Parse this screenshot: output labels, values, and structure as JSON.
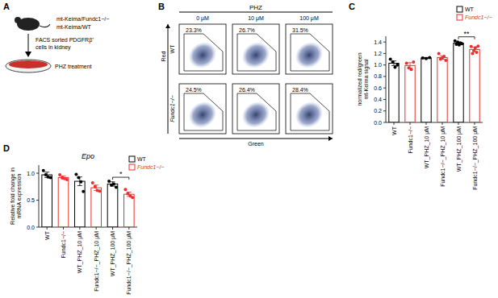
{
  "panel_labels": [
    "A",
    "B",
    "C",
    "D"
  ],
  "schematic": {
    "mouse_lines": [
      "mt-Keima/Fundc1−/−",
      "mt-Keima/WT"
    ],
    "sort_lines": [
      "FACS sorted PDGFRβ⁺",
      "cells in kidney"
    ],
    "treatment": "PHZ treatment"
  },
  "flow": {
    "title": "PHZ",
    "doses": [
      "0 μM",
      "10 μM",
      "100 μM"
    ],
    "rows": [
      "WT",
      "Fundc1−/−"
    ],
    "gate_labels": [
      [
        "23.3%",
        "26.7%",
        "31.5%"
      ],
      [
        "24.5%",
        "26.4%",
        "28.4%"
      ]
    ],
    "x_label": "Green",
    "y_label": "Red"
  },
  "chart_data": [
    {
      "type": "bar",
      "y_label": [
        "normalized red/green",
        "mt-Keima signal"
      ],
      "categories": [
        "WT",
        "Fundc1−/−",
        "WT_PHZ_10 μM",
        "Fundc1−/−_PHZ_10 μM",
        "WT_PHZ_100 μM",
        "Fundc1−/−_PHZ_100 μM"
      ],
      "series": [
        {
          "name": "WT",
          "color": "#000000",
          "values": [
            1.03,
            null,
            1.12,
            null,
            1.38,
            null
          ],
          "errors": [
            0.04,
            null,
            0.01,
            null,
            0.02,
            null
          ],
          "points": [
            [
              1.1,
              1.05,
              0.96,
              1.0
            ],
            null,
            [
              1.12,
              1.11,
              1.13
            ],
            null,
            [
              1.42,
              1.36,
              1.4,
              1.35,
              1.38,
              1.37
            ],
            null
          ]
        },
        {
          "name": "Fundc1−/−",
          "color": "#e8312f",
          "values": [
            null,
            0.99,
            null,
            1.13,
            null,
            1.27
          ],
          "errors": [
            null,
            0.05,
            null,
            0.03,
            null,
            0.04
          ],
          "points": [
            null,
            [
              1.03,
              0.95,
              0.92,
              1.05
            ],
            null,
            [
              1.2,
              1.1,
              1.12,
              1.15,
              1.08
            ],
            null,
            [
              1.32,
              1.2,
              1.25,
              1.3,
              1.22,
              1.33
            ]
          ]
        }
      ],
      "ylim": [
        0,
        1.5
      ],
      "yticks": [
        {
          "value": 0,
          "label": "0.0"
        },
        0.2,
        0.4,
        0.6,
        0.8,
        {
          "value": 1,
          "label": "1.0"
        },
        1.2,
        1.4
      ],
      "annotations": [
        {
          "text": "**",
          "categories": [
            "WT_PHZ_100 μM",
            "Fundc1−/−_PHZ_100 μM"
          ]
        }
      ],
      "legend": "top-right"
    },
    {
      "type": "bar",
      "title": "Epo",
      "y_label": [
        "Relative fold change in",
        "mRNA expression"
      ],
      "categories": [
        "WT",
        "Fundc1−/−",
        "WT_PHZ_10 μM",
        "Fundc1−/−_PHZ_10 μM",
        "WT_PHZ_100 μM",
        "Fundc1−/−_PHZ_100 μM"
      ],
      "series": [
        {
          "name": "WT",
          "color": "#000000",
          "values": [
            0.97,
            null,
            0.85,
            null,
            0.8,
            null
          ],
          "errors": [
            0.05,
            null,
            0.08,
            null,
            0.04,
            null
          ],
          "points": [
            [
              1.05,
              0.97,
              0.93,
              0.92
            ],
            null,
            [
              0.98,
              0.92,
              0.84,
              0.66
            ],
            null,
            [
              0.85,
              0.78,
              0.8,
              0.74
            ],
            null
          ]
        },
        {
          "name": "Fundc1−/−",
          "color": "#e8312f",
          "values": [
            null,
            0.92,
            null,
            0.73,
            null,
            0.61
          ],
          "errors": [
            null,
            0.03,
            null,
            0.05,
            null,
            0.04
          ],
          "points": [
            null,
            [
              0.97,
              0.92,
              0.9,
              0.88
            ],
            null,
            [
              0.82,
              0.75,
              0.68,
              0.67
            ],
            null,
            [
              0.7,
              0.62,
              0.58,
              0.55
            ]
          ]
        }
      ],
      "ylim": [
        0,
        1.15
      ],
      "yticks": [
        {
          "value": 0,
          "label": "0.0"
        },
        0.5,
        {
          "value": 1,
          "label": "1.0"
        }
      ],
      "annotations": [
        {
          "text": "*",
          "categories": [
            "WT_PHZ_100 μM",
            "Fundc1−/−_PHZ_100 μM"
          ]
        }
      ],
      "legend": "top-right"
    }
  ]
}
